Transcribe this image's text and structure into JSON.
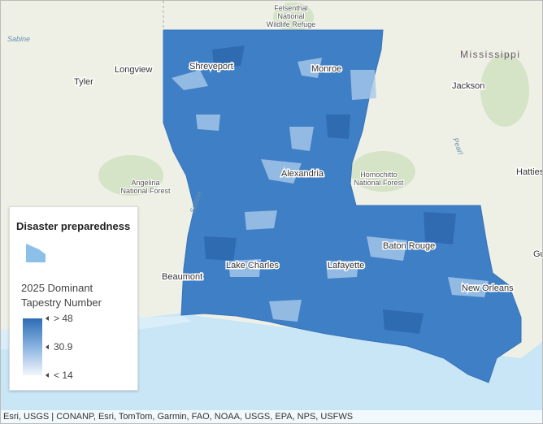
{
  "places": [
    [
      "Felsenthal",
      "National",
      "Wildlife Refuge"
    ],
    "Sabine",
    "Tyler",
    "Longview",
    "Shreveport",
    "Monroe",
    "Mississippi",
    "Jackson",
    "Pearl",
    "Hattiesburg",
    [
      "Angelina",
      "National Forest"
    ],
    [
      "Homochitto",
      "National Forest"
    ],
    "Alexandria",
    "Sabine",
    "Baton Rouge",
    "Lake Charles",
    "Lafayette",
    "Beaumont",
    "New Orleans",
    "Gulfport"
  ],
  "legend": {
    "title": "Disaster preparedness",
    "field": [
      "2025 Dominant",
      "Tapestry Number"
    ],
    "stops": [
      {
        "value": 48,
        "label": "> 48"
      },
      {
        "value": 30.9,
        "label": "30.9"
      },
      {
        "value": 14,
        "label": "< 14"
      }
    ]
  },
  "attribution": "Esri, USGS | CONANP, Esri, TomTom, Garmin, FAO, NOAA, USGS, EPA, NPS, USFWS"
}
